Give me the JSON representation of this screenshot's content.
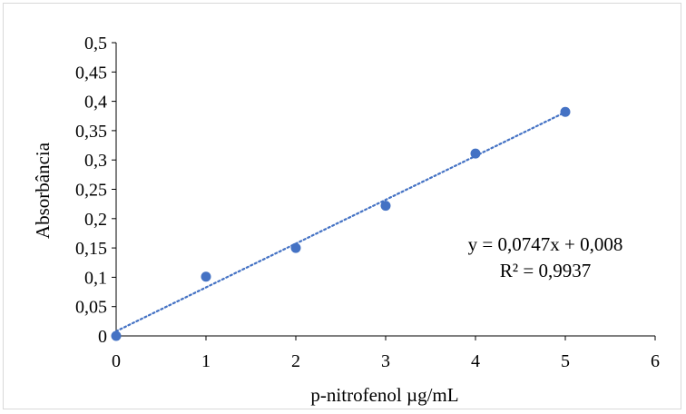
{
  "chart_data": {
    "type": "scatter",
    "xlabel": "p-nitrofenol µg/mL",
    "ylabel": "Absorbância",
    "xlim": [
      0,
      6
    ],
    "ylim": [
      0,
      0.5
    ],
    "x_ticks": [
      "0",
      "1",
      "2",
      "3",
      "4",
      "5",
      "6"
    ],
    "y_ticks": [
      "0",
      "0,05",
      "0,1",
      "0,15",
      "0,2",
      "0,25",
      "0,3",
      "0,35",
      "0,4",
      "0,45",
      "0,5"
    ],
    "grid": false,
    "series": [
      {
        "x": [
          0,
          1,
          2,
          3,
          4,
          5
        ],
        "y": [
          0,
          0.101,
          0.15,
          0.222,
          0.311,
          0.382
        ],
        "color": "#4472c4"
      }
    ],
    "trendline": {
      "type": "linear",
      "slope": 0.0747,
      "intercept": 0.008,
      "color": "#4472c4",
      "style": "dotted"
    },
    "annotations": {
      "equation": "y = 0,0747x + 0,008",
      "r_squared": "R² = 0,9937"
    }
  }
}
